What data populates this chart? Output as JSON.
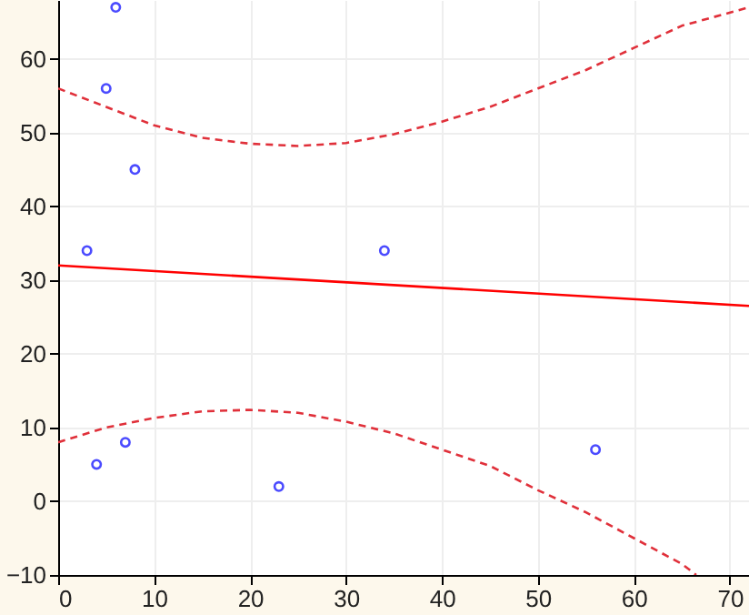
{
  "chart_data": {
    "type": "scatter",
    "xlim": [
      0,
      72
    ],
    "ylim": [
      -10,
      68
    ],
    "xticks": [
      0,
      10,
      20,
      30,
      40,
      50,
      60,
      70
    ],
    "yticks": [
      -10,
      0,
      10,
      20,
      30,
      40,
      50,
      60
    ],
    "grid": true,
    "marker": "circle",
    "series": [
      {
        "color": "#0000ff",
        "x": [
          3,
          4,
          5,
          6,
          7,
          8,
          23,
          34,
          56
        ],
        "values": [
          34,
          5,
          56,
          67,
          8,
          45,
          2,
          34,
          7
        ]
      },
      {
        "type": "line",
        "color": "#ff0000",
        "line_style": "solid",
        "marker": "none",
        "x": [
          0,
          72
        ],
        "values": [
          32,
          26.5
        ]
      },
      {
        "type": "line",
        "color": "#e0303a",
        "line_style": "dashed",
        "marker": "none",
        "x": [
          0,
          5,
          10,
          15,
          20,
          25,
          30,
          35,
          40,
          45,
          50,
          55,
          60,
          65,
          72
        ],
        "values": [
          56,
          53.5,
          51,
          49.3,
          48.5,
          48.2,
          48.6,
          49.8,
          51.5,
          53.5,
          56,
          58.5,
          61.5,
          64.5,
          67
        ]
      },
      {
        "type": "line",
        "color": "#e0303a",
        "line_style": "dashed",
        "marker": "none",
        "x": [
          0,
          5,
          10,
          15,
          20,
          25,
          30,
          35,
          40,
          45,
          50,
          55,
          60,
          65,
          66.5
        ],
        "values": [
          8,
          10,
          11.3,
          12.2,
          12.4,
          12,
          10.8,
          9.2,
          7,
          4.8,
          1.5,
          -1.5,
          -5,
          -8.5,
          -10
        ]
      }
    ]
  }
}
